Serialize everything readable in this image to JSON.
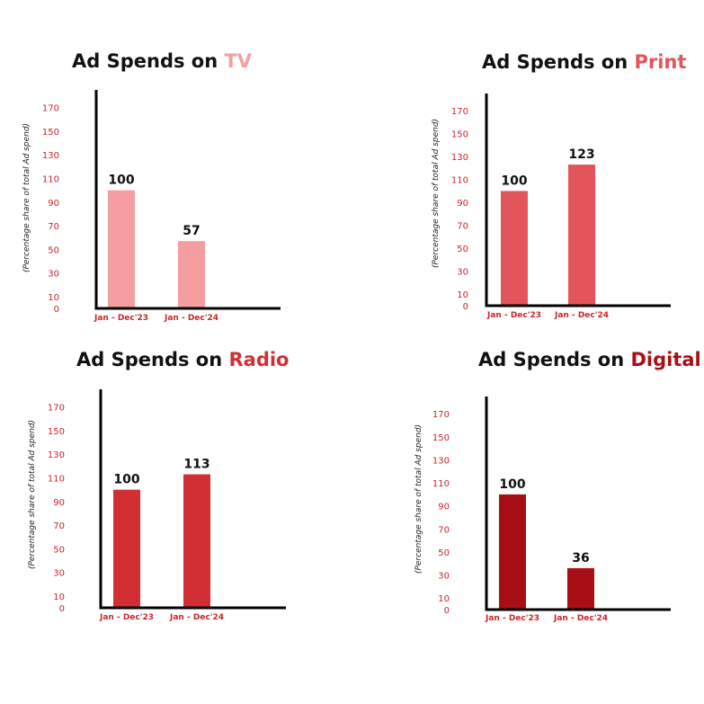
{
  "colors": {
    "axis_text": "#c9262c",
    "axis_line": "#000000",
    "title_text": "#111111"
  },
  "chart_data": [
    {
      "type": "bar",
      "title": "Ad Spends on",
      "title_highlight": "TV",
      "highlight_color": "#f49ea0",
      "bar_color": "#f49ea0",
      "ylabel": "(Percentage share of total Ad spend)",
      "categories": [
        "Jan - Dec'23",
        "Jan - Dec'24"
      ],
      "values": [
        100,
        57
      ],
      "yticks": [
        0,
        10,
        30,
        50,
        70,
        90,
        110,
        130,
        150,
        170
      ],
      "ylim": [
        0,
        185
      ],
      "grid": false
    },
    {
      "type": "bar",
      "title": "Ad Spends on",
      "title_highlight": "Print",
      "highlight_color": "#e2555b",
      "bar_color": "#e2555b",
      "ylabel": "(Percentage share of total Ad spend)",
      "categories": [
        "Jan - Dec'23",
        "Jan - Dec'24"
      ],
      "values": [
        100,
        123
      ],
      "yticks": [
        0,
        10,
        30,
        50,
        70,
        90,
        110,
        130,
        150,
        170
      ],
      "ylim": [
        0,
        185
      ],
      "grid": false
    },
    {
      "type": "bar",
      "title": "Ad Spends on",
      "title_highlight": "Radio",
      "highlight_color": "#d12f34",
      "bar_color": "#d12f34",
      "ylabel": "(Percentage share of total Ad spend)",
      "categories": [
        "Jan - Dec'23",
        "Jan - Dec'24"
      ],
      "values": [
        100,
        113
      ],
      "yticks": [
        0,
        10,
        30,
        50,
        70,
        90,
        110,
        130,
        150,
        170
      ],
      "ylim": [
        0,
        185
      ],
      "grid": false
    },
    {
      "type": "bar",
      "title": "Ad Spends on",
      "title_highlight": "Digital",
      "highlight_color": "#a80f14",
      "bar_color": "#a80f14",
      "ylabel": "(Percentage share of total Ad spend)",
      "categories": [
        "Jan - Dec'23",
        "Jan - Dec'24"
      ],
      "values": [
        100,
        36
      ],
      "yticks": [
        0,
        10,
        30,
        50,
        70,
        90,
        110,
        130,
        150,
        170
      ],
      "ylim": [
        0,
        185
      ],
      "grid": false
    }
  ]
}
